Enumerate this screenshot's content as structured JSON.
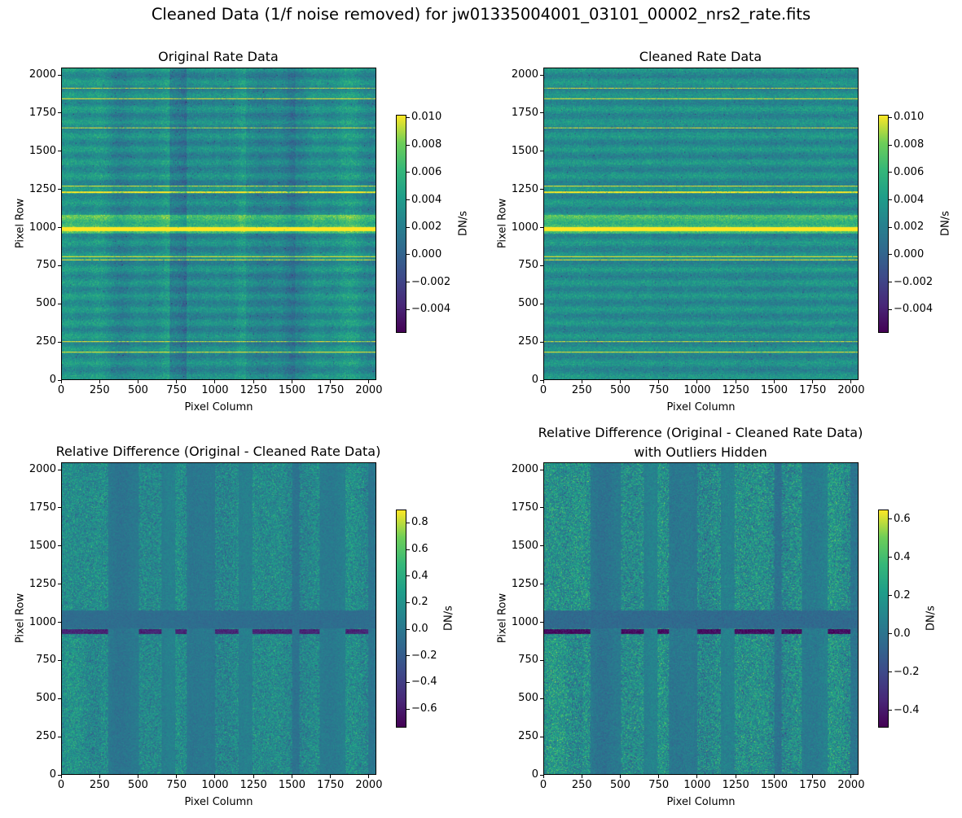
{
  "suptitle": "Cleaned Data (1/f noise removed) for jw01335004001_03101_00002_nrs2_rate.fits",
  "chart_data": [
    {
      "type": "heatmap",
      "title": "Original Rate Data",
      "xlabel": "Pixel Column",
      "ylabel": "Pixel Row",
      "xlim": [
        0,
        2048
      ],
      "ylim": [
        0,
        2048
      ],
      "xticks": [
        "0",
        "250",
        "500",
        "750",
        "1000",
        "1250",
        "1500",
        "1750",
        "2000"
      ],
      "yticks": [
        "0",
        "250",
        "500",
        "750",
        "1000",
        "1250",
        "1500",
        "1750",
        "2000"
      ],
      "colormap": "viridis",
      "colorbar": {
        "label": "DN/s",
        "range": [
          -0.0057,
          0.0102
        ],
        "ticks": [
          -0.004,
          -0.002,
          0.0,
          0.002,
          0.004,
          0.006,
          0.008,
          0.01
        ],
        "tick_labels": [
          "−0.004",
          "−0.002",
          "0.000",
          "0.002",
          "0.004",
          "0.006",
          "0.008",
          "0.010"
        ]
      }
    },
    {
      "type": "heatmap",
      "title": "Cleaned Rate Data",
      "xlabel": "Pixel Column",
      "ylabel": "Pixel Row",
      "xlim": [
        0,
        2048
      ],
      "ylim": [
        0,
        2048
      ],
      "xticks": [
        "0",
        "250",
        "500",
        "750",
        "1000",
        "1250",
        "1500",
        "1750",
        "2000"
      ],
      "yticks": [
        "0",
        "250",
        "500",
        "750",
        "1000",
        "1250",
        "1500",
        "1750",
        "2000"
      ],
      "colormap": "viridis",
      "colorbar": {
        "label": "DN/s",
        "range": [
          -0.0057,
          0.0102
        ],
        "ticks": [
          -0.004,
          -0.002,
          0.0,
          0.002,
          0.004,
          0.006,
          0.008,
          0.01
        ],
        "tick_labels": [
          "−0.004",
          "−0.002",
          "0.000",
          "0.002",
          "0.004",
          "0.006",
          "0.008",
          "0.010"
        ]
      }
    },
    {
      "type": "heatmap",
      "title": "Relative Difference (Original - Cleaned Rate Data)",
      "xlabel": "Pixel Column",
      "ylabel": "Pixel Row",
      "xlim": [
        0,
        2048
      ],
      "ylim": [
        0,
        2048
      ],
      "xticks": [
        "0",
        "250",
        "500",
        "750",
        "1000",
        "1250",
        "1500",
        "1750",
        "2000"
      ],
      "yticks": [
        "0",
        "250",
        "500",
        "750",
        "1000",
        "1250",
        "1500",
        "1750",
        "2000"
      ],
      "colormap": "viridis",
      "colorbar": {
        "label": "DN/s",
        "range": [
          -0.74,
          0.9
        ],
        "ticks": [
          -0.6,
          -0.4,
          -0.2,
          0.0,
          0.2,
          0.4,
          0.6,
          0.8
        ],
        "tick_labels": [
          "−0.6",
          "−0.4",
          "−0.2",
          "0.0",
          "0.2",
          "0.4",
          "0.6",
          "0.8"
        ]
      }
    },
    {
      "type": "heatmap",
      "title": "Relative Difference (Original - Cleaned Rate Data)",
      "title2": "with Outliers Hidden",
      "xlabel": "Pixel Column",
      "ylabel": "Pixel Row",
      "xlim": [
        0,
        2048
      ],
      "ylim": [
        0,
        2048
      ],
      "xticks": [
        "0",
        "250",
        "500",
        "750",
        "1000",
        "1250",
        "1500",
        "1750",
        "2000"
      ],
      "yticks": [
        "0",
        "250",
        "500",
        "750",
        "1000",
        "1250",
        "1500",
        "1750",
        "2000"
      ],
      "colormap": "viridis",
      "colorbar": {
        "label": "DN/s",
        "range": [
          -0.49,
          0.65
        ],
        "ticks": [
          -0.4,
          -0.2,
          0.0,
          0.2,
          0.4,
          0.6
        ],
        "tick_labels": [
          "−0.4",
          "−0.2",
          "0.0",
          "0.2",
          "0.4",
          "0.6"
        ]
      }
    }
  ]
}
